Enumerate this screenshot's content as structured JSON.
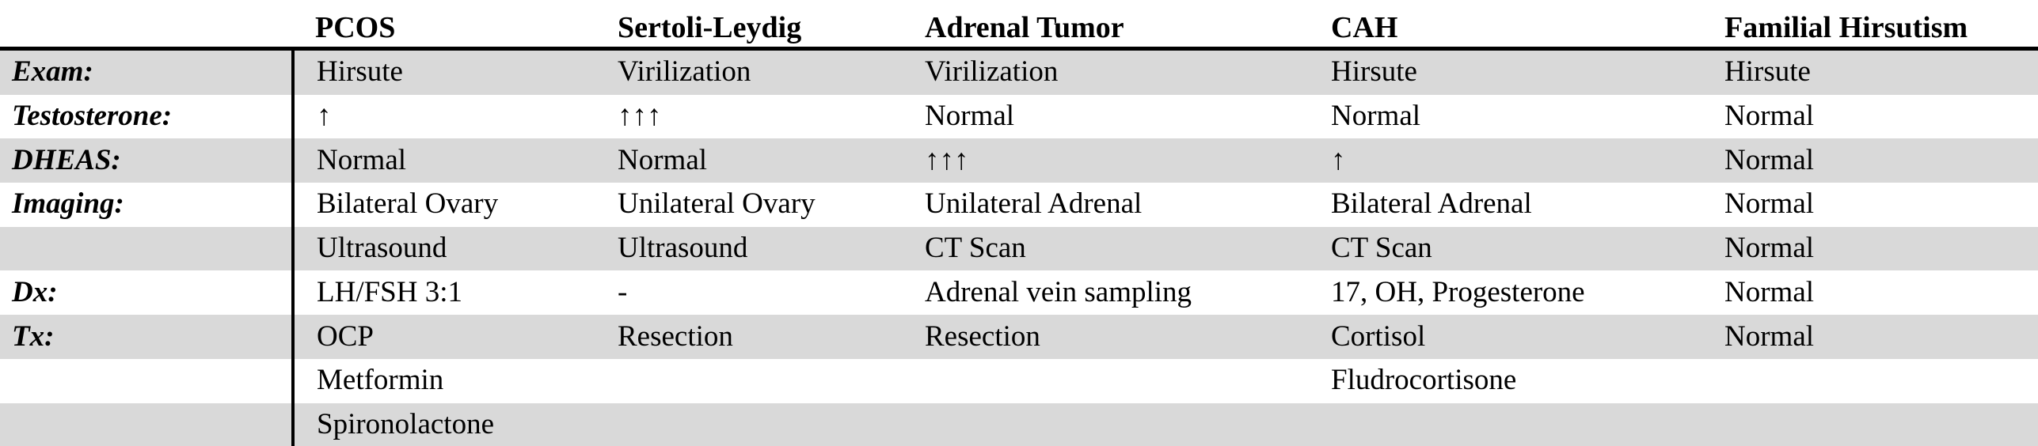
{
  "table": {
    "colors": {
      "shaded_row": "#d9d9d9",
      "rule": "#000000",
      "text": "#000000"
    },
    "columns": [
      {
        "label": ""
      },
      {
        "label": "PCOS"
      },
      {
        "label": "Sertoli-Leydig"
      },
      {
        "label": "Adrenal Tumor"
      },
      {
        "label": "CAH"
      },
      {
        "label": "Familial Hirsutism"
      }
    ],
    "rows": [
      {
        "label": "Exam:",
        "shaded": true,
        "cells": [
          "Hirsute",
          "Virilization",
          "Virilization",
          "Hirsute",
          "Hirsute"
        ]
      },
      {
        "label": "Testosterone:",
        "shaded": false,
        "cells": [
          "↑",
          "↑↑↑",
          "Normal",
          "Normal",
          "Normal"
        ]
      },
      {
        "label": "DHEAS:",
        "shaded": true,
        "cells": [
          "Normal",
          "Normal",
          "↑↑↑",
          "↑",
          "Normal"
        ]
      },
      {
        "label": "Imaging:",
        "shaded": false,
        "cells": [
          "Bilateral Ovary",
          "Unilateral Ovary",
          "Unilateral Adrenal",
          "Bilateral Adrenal",
          "Normal"
        ]
      },
      {
        "label": "",
        "shaded": true,
        "cells": [
          "Ultrasound",
          "Ultrasound",
          "CT Scan",
          "CT Scan",
          "Normal"
        ]
      },
      {
        "label": "Dx:",
        "shaded": false,
        "cells": [
          "LH/FSH 3:1",
          "-",
          "Adrenal vein sampling",
          "17, OH, Progesterone",
          "Normal"
        ]
      },
      {
        "label": "Tx:",
        "shaded": true,
        "cells": [
          "OCP",
          "Resection",
          "Resection",
          "Cortisol",
          "Normal"
        ]
      },
      {
        "label": "",
        "shaded": false,
        "cells": [
          "Metformin",
          "",
          "",
          "Fludrocortisone",
          ""
        ]
      },
      {
        "label": "",
        "shaded": true,
        "cells": [
          "Spironolactone",
          "",
          "",
          "",
          ""
        ]
      }
    ]
  }
}
